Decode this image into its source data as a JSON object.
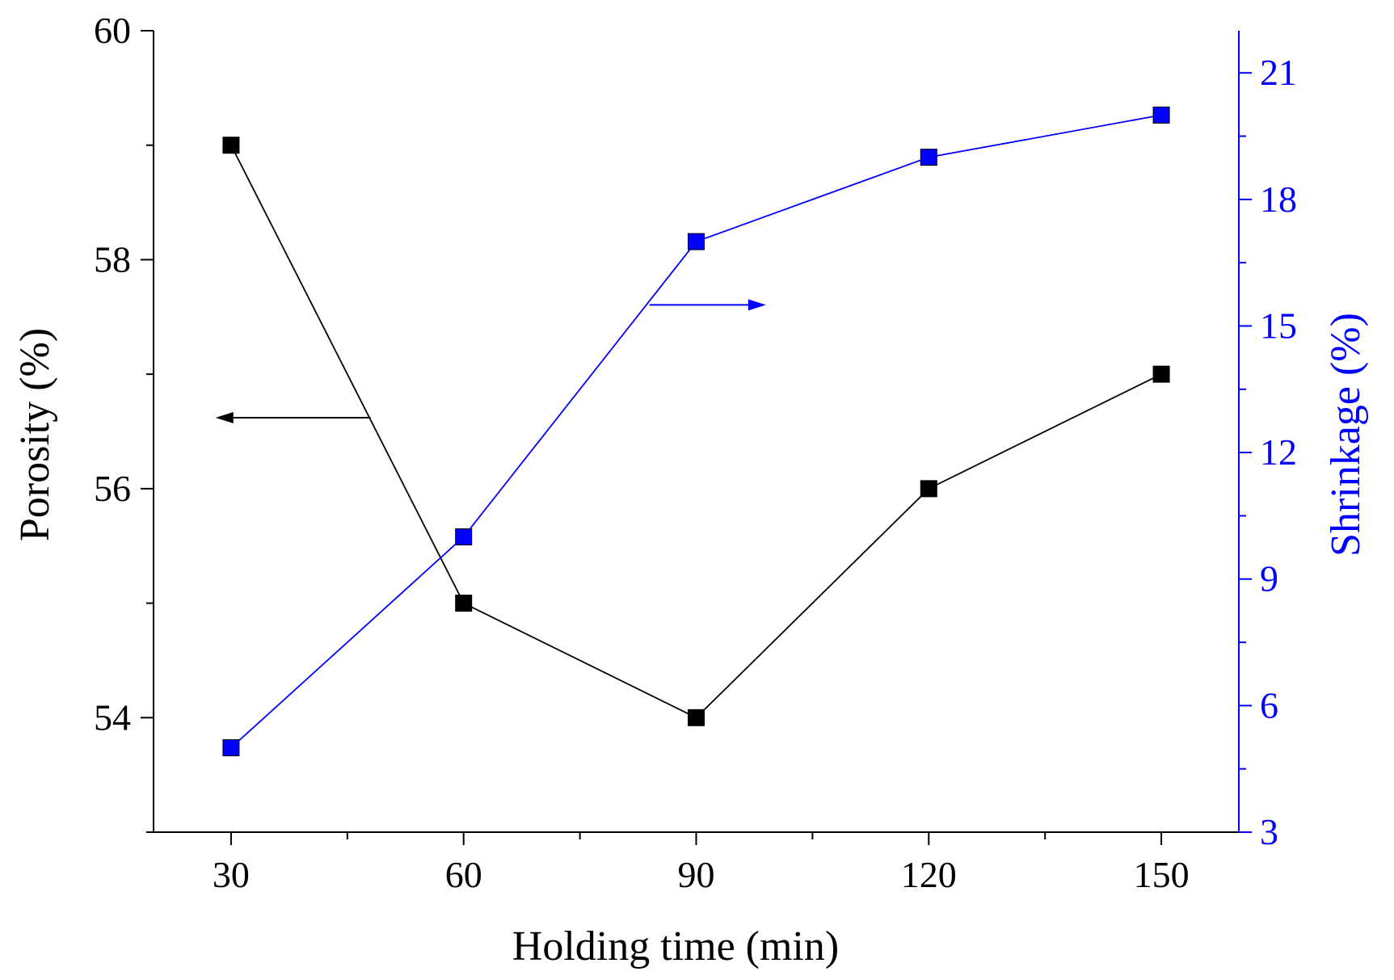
{
  "colors": {
    "porosity": "#000000",
    "shrinkage": "#0000ff",
    "background": "#ffffff"
  },
  "chart_data": {
    "type": "line",
    "xlabel": "Holding time (min)",
    "ylabel": "Porosity (%)",
    "y2label": "Shrinkage (%)",
    "x": [
      30,
      60,
      90,
      120,
      150
    ],
    "xlim": [
      20,
      160
    ],
    "xticks": [
      30,
      60,
      90,
      120,
      150
    ],
    "ylim": [
      53,
      60
    ],
    "yticks": [
      54,
      56,
      58,
      60
    ],
    "y2lim": [
      3,
      22
    ],
    "y2ticks": [
      3,
      6,
      9,
      12,
      15,
      18,
      21
    ],
    "grid": false,
    "marker": "square",
    "series": [
      {
        "axis": "left",
        "color": "#000000",
        "values": [
          59.0,
          55.0,
          54.0,
          56.0,
          57.0
        ]
      },
      {
        "axis": "right",
        "color": "#0000ff",
        "values": [
          5.0,
          10.0,
          17.0,
          19.0,
          20.0
        ]
      }
    ],
    "annotations": [
      {
        "type": "arrow",
        "direction": "left",
        "axis": "left",
        "color": "#000000"
      },
      {
        "type": "arrow",
        "direction": "right",
        "axis": "right",
        "color": "#0000ff"
      }
    ]
  }
}
